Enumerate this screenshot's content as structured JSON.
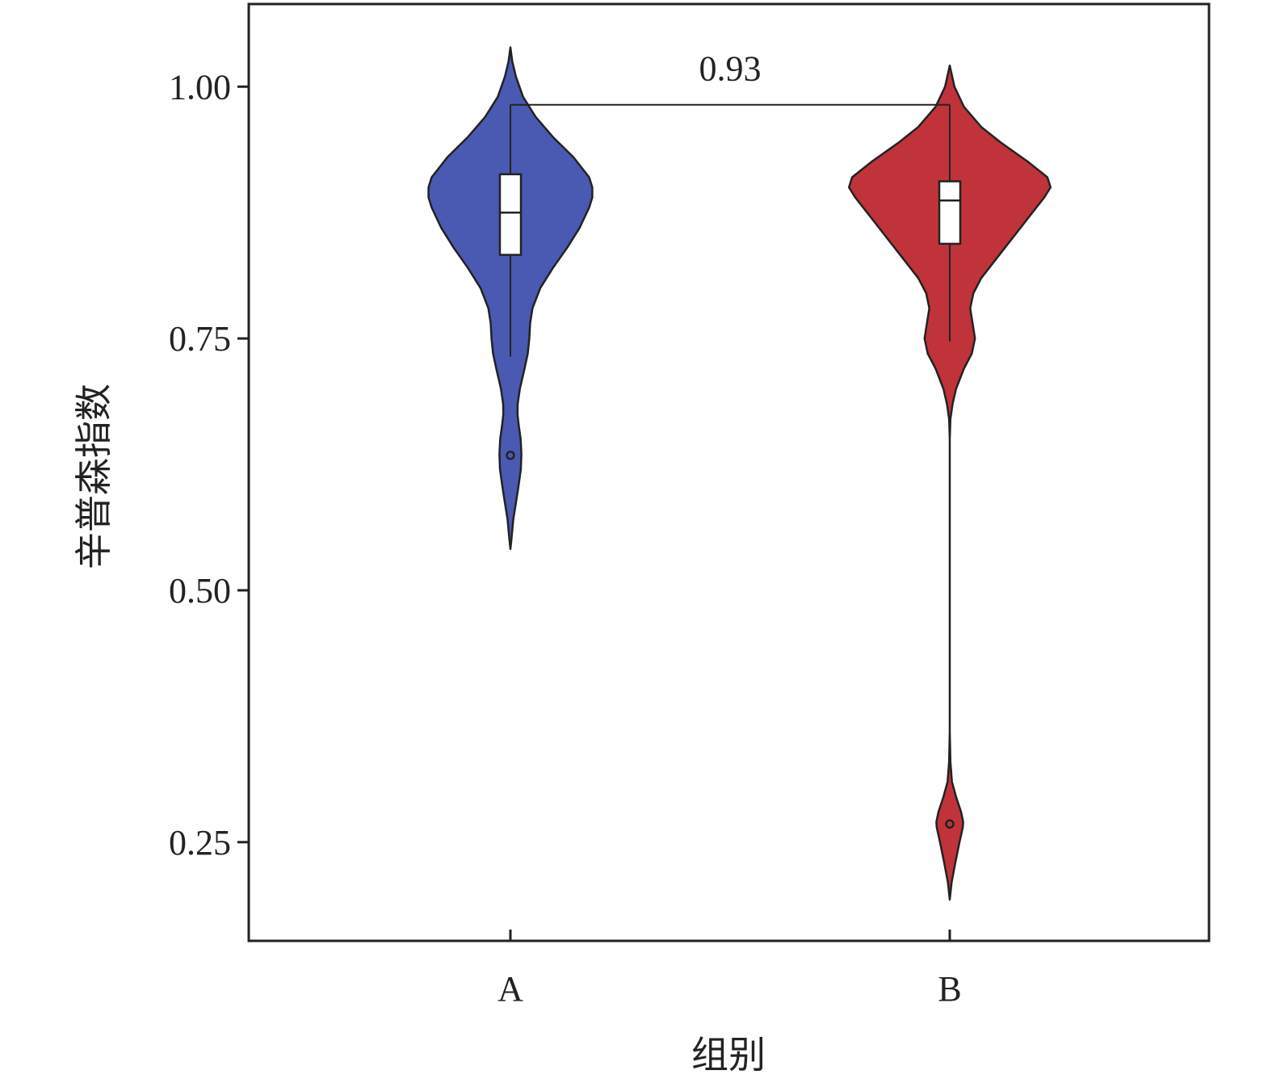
{
  "chart_data": {
    "type": "violin",
    "xlabel": "组别",
    "ylabel": "辛普森指数",
    "ylim": [
      0.152,
      1.082
    ],
    "yticks": [
      {
        "value": 0.25,
        "label": "0.25"
      },
      {
        "value": 0.5,
        "label": "0.50"
      },
      {
        "value": 0.75,
        "label": "0.75"
      },
      {
        "value": 1.0,
        "label": "1.00"
      }
    ],
    "categories": [
      "A",
      "B"
    ],
    "colors": {
      "A": "#4a59b1",
      "B": "#c0333a"
    },
    "groups": [
      {
        "name": "A",
        "box": {
          "whisker_low": 0.732,
          "q1": 0.833,
          "median": 0.875,
          "q3": 0.913,
          "whisker_high": 0.982
        },
        "outliers": [
          0.634
        ],
        "density": [
          [
            0.541,
            0.0
          ],
          [
            0.55,
            0.006
          ],
          [
            0.57,
            0.018
          ],
          [
            0.6,
            0.048
          ],
          [
            0.62,
            0.066
          ],
          [
            0.635,
            0.07
          ],
          [
            0.65,
            0.065
          ],
          [
            0.665,
            0.052
          ],
          [
            0.675,
            0.045
          ],
          [
            0.685,
            0.046
          ],
          [
            0.7,
            0.06
          ],
          [
            0.72,
            0.09
          ],
          [
            0.735,
            0.11
          ],
          [
            0.75,
            0.12
          ],
          [
            0.765,
            0.125
          ],
          [
            0.78,
            0.14
          ],
          [
            0.8,
            0.19
          ],
          [
            0.82,
            0.27
          ],
          [
            0.84,
            0.36
          ],
          [
            0.86,
            0.44
          ],
          [
            0.88,
            0.5
          ],
          [
            0.89,
            0.52
          ],
          [
            0.9,
            0.52
          ],
          [
            0.91,
            0.5
          ],
          [
            0.93,
            0.4
          ],
          [
            0.95,
            0.27
          ],
          [
            0.97,
            0.16
          ],
          [
            0.99,
            0.08
          ],
          [
            1.01,
            0.035
          ],
          [
            1.025,
            0.012
          ],
          [
            1.039,
            0.0
          ]
        ]
      },
      {
        "name": "B",
        "box": {
          "whisker_low": 0.747,
          "q1": 0.844,
          "median": 0.887,
          "q3": 0.906,
          "whisker_high": 0.982
        },
        "outliers": [
          0.268
        ],
        "density": [
          [
            0.193,
            0.0
          ],
          [
            0.21,
            0.012
          ],
          [
            0.23,
            0.036
          ],
          [
            0.25,
            0.062
          ],
          [
            0.265,
            0.083
          ],
          [
            0.27,
            0.085
          ],
          [
            0.28,
            0.072
          ],
          [
            0.295,
            0.04
          ],
          [
            0.31,
            0.014
          ],
          [
            0.33,
            0.004
          ],
          [
            0.36,
            0.0
          ],
          [
            0.65,
            0.0
          ],
          [
            0.67,
            0.004
          ],
          [
            0.685,
            0.018
          ],
          [
            0.7,
            0.04
          ],
          [
            0.72,
            0.09
          ],
          [
            0.735,
            0.14
          ],
          [
            0.75,
            0.16
          ],
          [
            0.765,
            0.145
          ],
          [
            0.78,
            0.13
          ],
          [
            0.795,
            0.15
          ],
          [
            0.81,
            0.2
          ],
          [
            0.83,
            0.3
          ],
          [
            0.85,
            0.4
          ],
          [
            0.87,
            0.5
          ],
          [
            0.89,
            0.6
          ],
          [
            0.9,
            0.64
          ],
          [
            0.91,
            0.62
          ],
          [
            0.925,
            0.5
          ],
          [
            0.945,
            0.32
          ],
          [
            0.96,
            0.2
          ],
          [
            0.98,
            0.09
          ],
          [
            1.0,
            0.03
          ],
          [
            1.021,
            0.0
          ]
        ]
      }
    ],
    "comparison": {
      "groups": [
        "A",
        "B"
      ],
      "label": "0.93",
      "y": 0.982
    },
    "grid": false,
    "legend": "none"
  }
}
